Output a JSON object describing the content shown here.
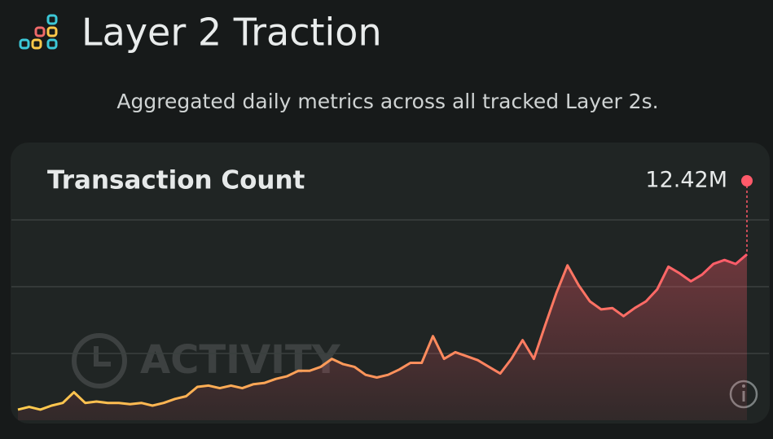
{
  "page": {
    "title": "Layer 2 Traction",
    "subtitle": "Aggregated daily metrics across all tracked Layer 2s."
  },
  "chart_data": {
    "type": "area",
    "title": "Transaction Count",
    "watermark": "ACTIVITY",
    "values": [
      0.8,
      1.0,
      0.8,
      1.1,
      1.3,
      2.1,
      1.3,
      1.4,
      1.3,
      1.3,
      1.2,
      1.3,
      1.1,
      1.3,
      1.6,
      1.8,
      2.5,
      2.6,
      2.4,
      2.6,
      2.4,
      2.7,
      2.8,
      3.1,
      3.3,
      3.7,
      3.7,
      4.0,
      4.6,
      4.2,
      4.0,
      3.4,
      3.2,
      3.4,
      3.8,
      4.3,
      4.3,
      6.3,
      4.6,
      5.1,
      4.8,
      4.5,
      4.0,
      3.5,
      4.6,
      6.0,
      4.6,
      7.1,
      9.5,
      11.6,
      10.1,
      8.9,
      8.3,
      8.4,
      7.8,
      8.4,
      8.9,
      9.8,
      11.5,
      11.0,
      10.4,
      10.9,
      11.7,
      12.0,
      11.7,
      12.42
    ],
    "value_labels": [
      null,
      null,
      null,
      null,
      null,
      null,
      null,
      null,
      null,
      null,
      null,
      null,
      null,
      null,
      null,
      null,
      null,
      null,
      null,
      null,
      null,
      null,
      null,
      null,
      null,
      null,
      null,
      null,
      null,
      null,
      null,
      null,
      null,
      null,
      null,
      null,
      null,
      null,
      null,
      null,
      null,
      null,
      null,
      null,
      null,
      null,
      null,
      null,
      null,
      null,
      null,
      null,
      null,
      null,
      null,
      null,
      null,
      null,
      null,
      null,
      null,
      null,
      null,
      null,
      null,
      "12.42M"
    ],
    "color_start": "#ffcc4d",
    "color_end": "#ff5a6a",
    "ylim": [
      0,
      15
    ],
    "yticks": [
      5,
      10,
      15
    ],
    "grid": true
  }
}
